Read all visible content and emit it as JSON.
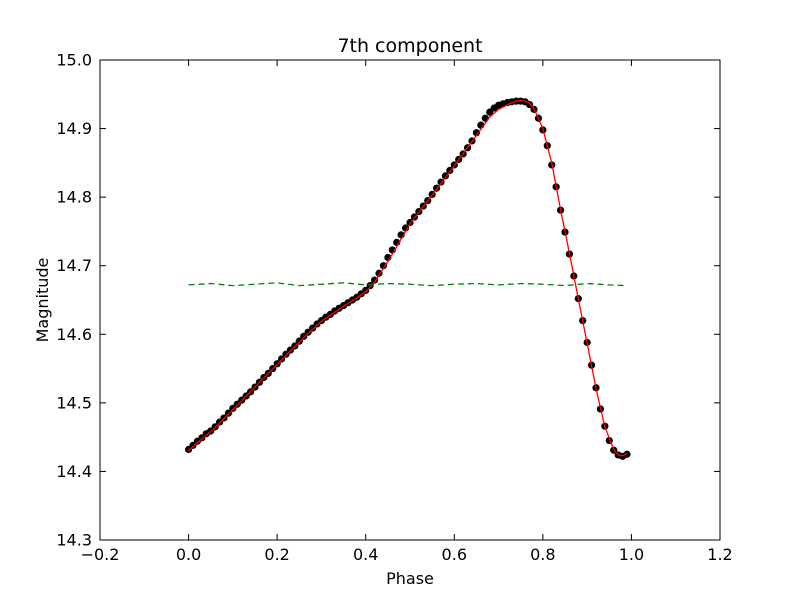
{
  "chart_data": {
    "type": "scatter",
    "title": "7th component",
    "xlabel": "Phase",
    "ylabel": "Magnitude",
    "xlim": [
      -0.2,
      1.2
    ],
    "ylim": [
      14.3,
      15.0
    ],
    "y_inverted": false,
    "grid": false,
    "x_ticks": [
      "−0.2",
      "0.0",
      "0.2",
      "0.4",
      "0.6",
      "0.8",
      "1.0",
      "1.2"
    ],
    "x_tick_values": [
      -0.2,
      0.0,
      0.2,
      0.4,
      0.6,
      0.8,
      1.0,
      1.2
    ],
    "y_ticks": [
      "14.3",
      "14.4",
      "14.5",
      "14.6",
      "14.7",
      "14.8",
      "14.9",
      "15.0"
    ],
    "y_tick_values": [
      14.3,
      14.4,
      14.5,
      14.6,
      14.7,
      14.8,
      14.9,
      15.0
    ],
    "series": [
      {
        "style": "markers",
        "color": "#000000",
        "x": [
          0.0,
          0.01,
          0.02,
          0.03,
          0.04,
          0.05,
          0.06,
          0.07,
          0.08,
          0.09,
          0.1,
          0.11,
          0.12,
          0.13,
          0.14,
          0.15,
          0.16,
          0.17,
          0.18,
          0.19,
          0.2,
          0.21,
          0.22,
          0.23,
          0.24,
          0.25,
          0.26,
          0.27,
          0.28,
          0.29,
          0.3,
          0.31,
          0.32,
          0.33,
          0.34,
          0.35,
          0.36,
          0.37,
          0.38,
          0.39,
          0.4,
          0.41,
          0.42,
          0.43,
          0.44,
          0.45,
          0.46,
          0.47,
          0.48,
          0.49,
          0.5,
          0.51,
          0.52,
          0.53,
          0.54,
          0.55,
          0.56,
          0.57,
          0.58,
          0.59,
          0.6,
          0.61,
          0.62,
          0.63,
          0.64,
          0.65,
          0.66,
          0.67,
          0.68,
          0.69,
          0.7,
          0.71,
          0.72,
          0.73,
          0.74,
          0.75,
          0.76,
          0.77,
          0.78,
          0.79,
          0.8,
          0.81,
          0.82,
          0.83,
          0.84,
          0.85,
          0.86,
          0.87,
          0.88,
          0.89,
          0.9,
          0.91,
          0.92,
          0.93,
          0.94,
          0.95,
          0.96,
          0.97,
          0.98,
          0.99
        ],
        "y": [
          14.432,
          14.438,
          14.444,
          14.449,
          14.455,
          14.459,
          14.465,
          14.472,
          14.478,
          14.485,
          14.492,
          14.498,
          14.504,
          14.51,
          14.516,
          14.523,
          14.53,
          14.537,
          14.543,
          14.55,
          14.557,
          14.564,
          14.571,
          14.577,
          14.583,
          14.59,
          14.597,
          14.603,
          14.609,
          14.615,
          14.62,
          14.625,
          14.629,
          14.634,
          14.638,
          14.642,
          14.646,
          14.65,
          14.654,
          14.659,
          14.664,
          14.671,
          14.679,
          14.689,
          14.7,
          14.712,
          14.723,
          14.734,
          14.745,
          14.755,
          14.763,
          14.771,
          14.779,
          14.787,
          14.795,
          14.804,
          14.813,
          14.822,
          14.831,
          14.839,
          14.847,
          14.855,
          14.863,
          14.872,
          14.882,
          14.894,
          14.905,
          14.915,
          14.924,
          14.93,
          14.934,
          14.936,
          14.938,
          14.939,
          14.94,
          14.94,
          14.939,
          14.935,
          14.928,
          14.915,
          14.898,
          14.875,
          14.847,
          14.815,
          14.781,
          14.749,
          14.717,
          14.685,
          14.652,
          14.62,
          14.588,
          14.555,
          14.522,
          14.491,
          14.466,
          14.445,
          14.431,
          14.424,
          14.422,
          14.425
        ]
      },
      {
        "style": "line",
        "color": "#ff0000",
        "x": [
          0.0,
          0.02,
          0.05,
          0.08,
          0.1,
          0.15,
          0.2,
          0.25,
          0.3,
          0.35,
          0.38,
          0.4,
          0.42,
          0.45,
          0.5,
          0.55,
          0.6,
          0.65,
          0.68,
          0.7,
          0.72,
          0.74,
          0.75,
          0.76,
          0.77,
          0.78,
          0.8,
          0.82,
          0.84,
          0.86,
          0.88,
          0.9,
          0.92,
          0.94,
          0.96,
          0.97,
          0.98,
          0.99
        ],
        "y": [
          14.43,
          14.442,
          14.458,
          14.477,
          14.49,
          14.523,
          14.556,
          14.589,
          14.619,
          14.641,
          14.653,
          14.662,
          14.676,
          14.706,
          14.761,
          14.803,
          14.846,
          14.89,
          14.917,
          14.928,
          14.935,
          14.94,
          14.941,
          14.94,
          14.937,
          14.929,
          14.9,
          14.85,
          14.782,
          14.718,
          14.652,
          14.587,
          14.521,
          14.465,
          14.432,
          14.424,
          14.423,
          14.426
        ]
      },
      {
        "style": "dashed-line",
        "color": "#008000",
        "x": [
          0.0,
          0.05,
          0.1,
          0.15,
          0.2,
          0.25,
          0.3,
          0.35,
          0.4,
          0.45,
          0.5,
          0.55,
          0.6,
          0.65,
          0.7,
          0.75,
          0.8,
          0.85,
          0.9,
          0.95,
          0.99
        ],
        "y": [
          14.672,
          14.674,
          14.671,
          14.673,
          14.675,
          14.671,
          14.673,
          14.675,
          14.672,
          14.674,
          14.673,
          14.671,
          14.673,
          14.674,
          14.672,
          14.674,
          14.673,
          14.671,
          14.674,
          14.672,
          14.671
        ]
      }
    ]
  }
}
